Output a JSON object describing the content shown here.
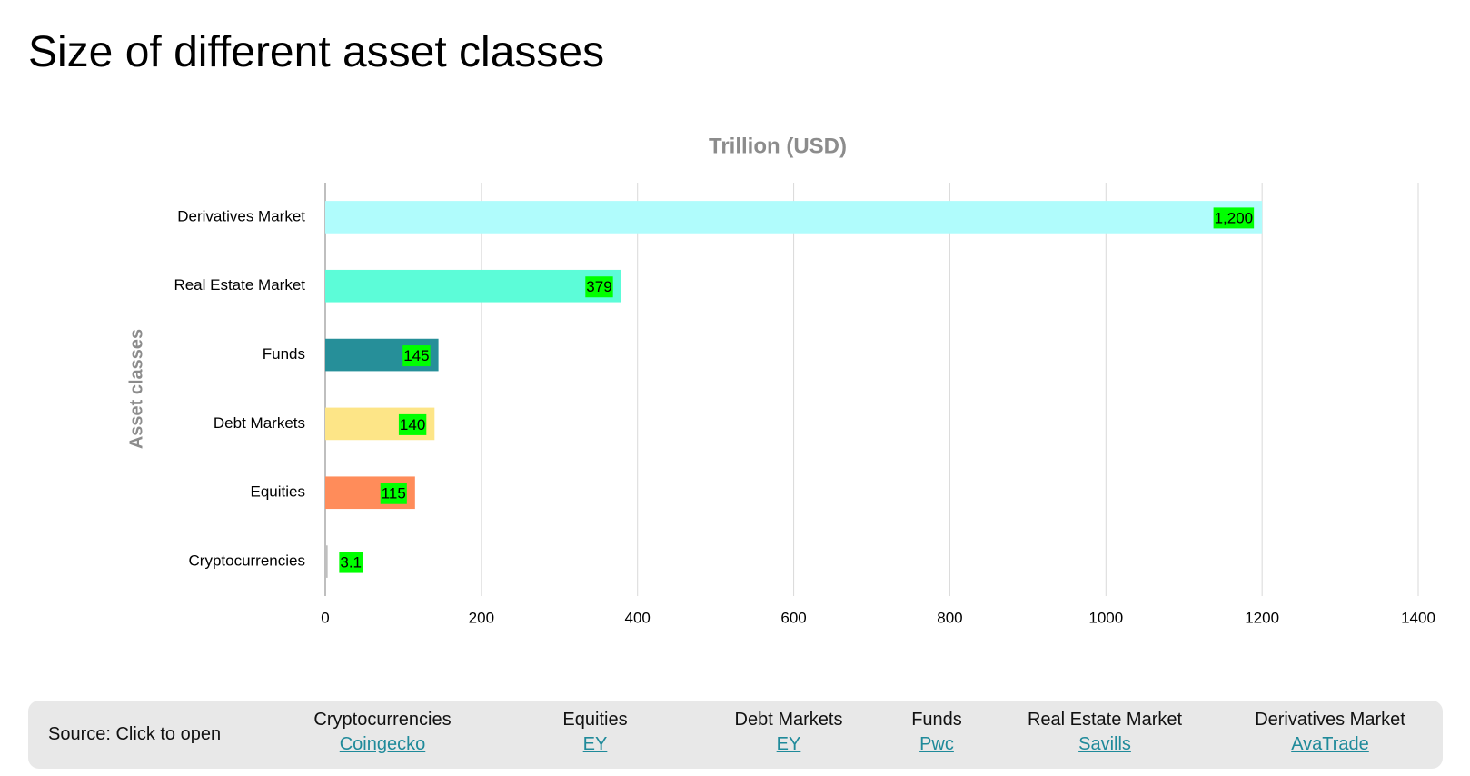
{
  "title": "Size of different asset classes",
  "chart_data": {
    "type": "bar",
    "orientation": "horizontal",
    "title": "Trillion (USD)",
    "y_label": "Asset classes",
    "categories": [
      "Cryptocurrencies",
      "Equities",
      "Debt Markets",
      "Funds",
      "Real Estate Market",
      "Derivatives Market"
    ],
    "values": [
      3.1,
      115,
      140,
      145,
      379,
      1200
    ],
    "value_labels": [
      "3.1",
      "115",
      "140",
      "145",
      "379",
      "1,200"
    ],
    "colors": [
      "#bfbfbf",
      "#ff8c5a",
      "#fde587",
      "#268f99",
      "#5cfcd8",
      "#b0fcfc"
    ],
    "xlim": [
      0,
      1400
    ],
    "xticks": [
      0,
      200,
      400,
      600,
      800,
      1000,
      1200,
      1400
    ],
    "grid": true
  },
  "footer": {
    "label": "Source: Click to open",
    "sources": [
      {
        "name": "Cryptocurrencies",
        "link": "Coingecko"
      },
      {
        "name": "Equities",
        "link": "EY"
      },
      {
        "name": "Debt Markets",
        "link": "EY"
      },
      {
        "name": "Funds",
        "link": "Pwc"
      },
      {
        "name": "Real Estate Market",
        "link": "Savills"
      },
      {
        "name": "Derivatives Market",
        "link": "AvaTrade"
      }
    ]
  }
}
